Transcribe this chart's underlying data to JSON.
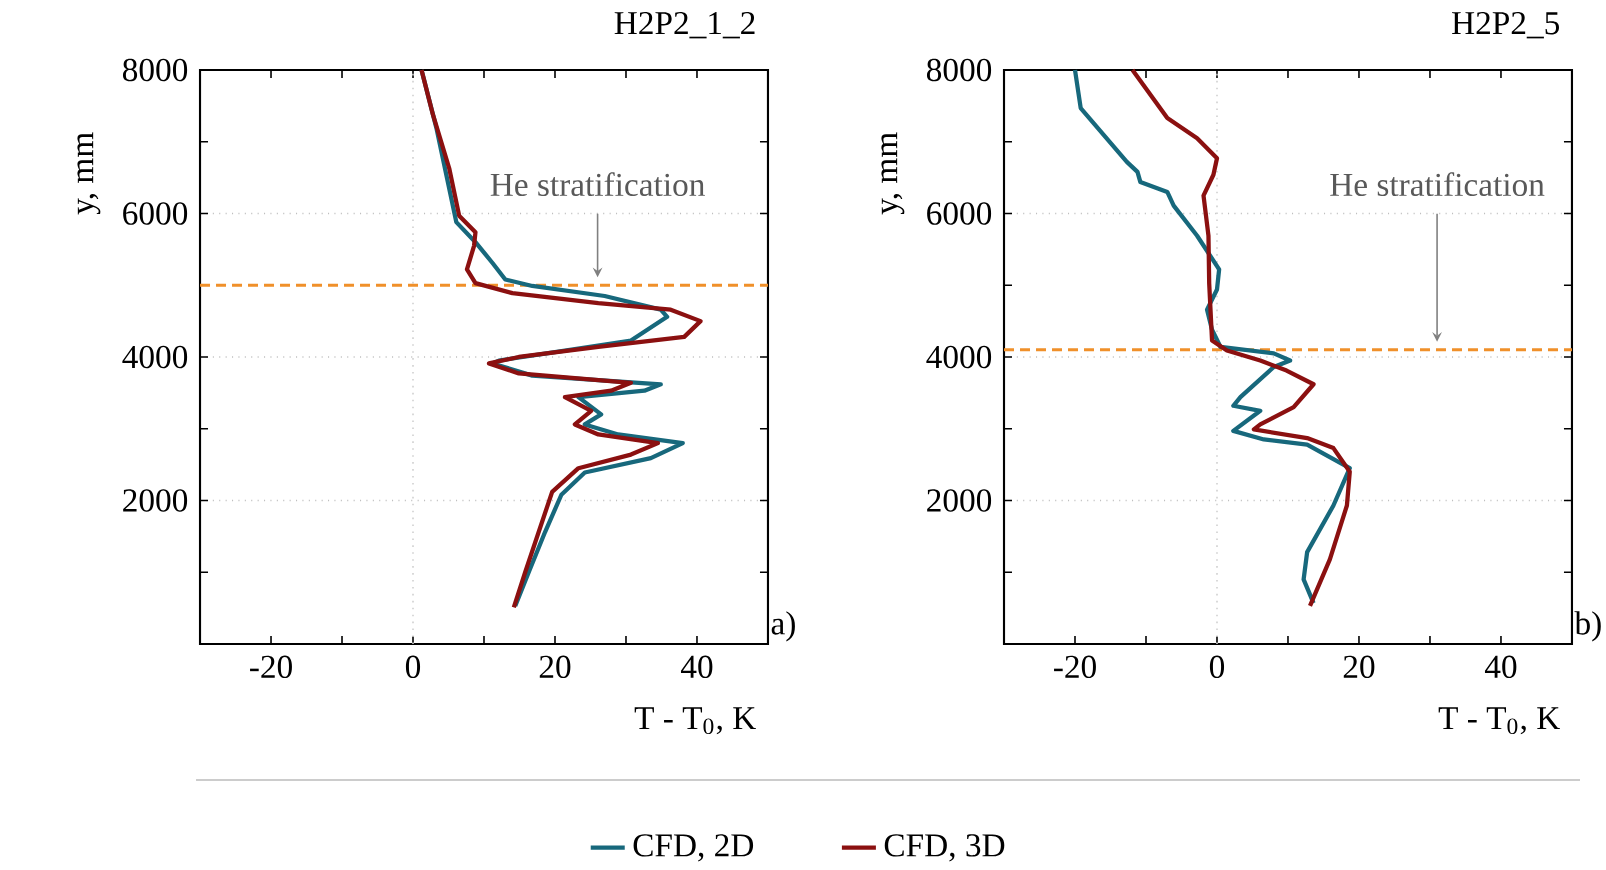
{
  "chart_data": [
    {
      "type": "line",
      "title": "H2P2_1_2",
      "xlabel": "T - T$_{0}$, K",
      "ylabel": "y, mm",
      "xlim": [
        -30,
        50
      ],
      "ylim": [
        0,
        8000
      ],
      "xticks": [
        -20,
        {
          "value": -10,
          "label": null
        },
        0,
        {
          "value": 10,
          "label": null
        },
        20,
        {
          "value": 30,
          "label": null
        },
        40
      ],
      "yticks": [
        {
          "value": 1000,
          "label": null
        },
        2000,
        {
          "value": 3000,
          "label": null
        },
        4000,
        {
          "value": 5000,
          "label": null
        },
        6000,
        {
          "value": 7000,
          "label": null
        },
        8000
      ],
      "grid": "y",
      "legend": "bottom",
      "series": [
        {
          "name": "CFD, 2D",
          "color": "#17687c",
          "x": [
            1.2,
            3.3,
            6.1,
            8.8,
            11.2,
            13.0,
            16.8,
            27.0,
            34.9,
            35.8,
            30.7,
            21.4,
            12.1,
            11.2,
            16.8,
            34.9,
            32.6,
            23.3,
            26.5,
            24.2,
            28.9,
            38.0,
            33.5,
            24.2,
            20.9,
            18.6,
            16.3,
            14.4
          ],
          "values": [
            8000,
            7190,
            5880,
            5600,
            5310,
            5080,
            4990,
            4850,
            4660,
            4560,
            4230,
            4090,
            3950,
            3910,
            3740,
            3620,
            3530,
            3440,
            3200,
            3060,
            2920,
            2800,
            2590,
            2390,
            2080,
            1560,
            1000,
            530
          ]
        },
        {
          "name": "CFD, 3D",
          "color": "#8b1010",
          "x": [
            1.2,
            2.8,
            5.1,
            6.5,
            8.8,
            8.6,
            7.6,
            8.8,
            14.0,
            26.1,
            36.3,
            40.5,
            38.2,
            26.1,
            14.9,
            10.7,
            14.9,
            30.7,
            27.9,
            21.4,
            25.1,
            22.8,
            26.1,
            34.5,
            30.7,
            23.3,
            19.6,
            17.7,
            15.8,
            14.2
          ],
          "values": [
            8000,
            7380,
            6630,
            5970,
            5740,
            5550,
            5220,
            5030,
            4890,
            4750,
            4660,
            4500,
            4280,
            4140,
            4000,
            3910,
            3770,
            3640,
            3530,
            3440,
            3250,
            3060,
            2920,
            2800,
            2640,
            2450,
            2120,
            1560,
            1000,
            510
          ]
        }
      ],
      "ref_lines": [
        {
          "axis": "x",
          "value": 0,
          "color": "#d0d0d0",
          "line_style": "dotted"
        },
        {
          "axis": "y",
          "value": 5000,
          "color": "#f0902a",
          "line_style": "dashed"
        }
      ],
      "annotations": [
        {
          "text": "He stratification",
          "x": 26,
          "y": 5000
        },
        "a)"
      ]
    },
    {
      "type": "line",
      "title": "H2P2_5",
      "xlabel": "T - T$_{0}$, K",
      "ylabel": "y, mm",
      "xlim": [
        -30,
        50
      ],
      "ylim": [
        0,
        8000
      ],
      "xticks": [
        -20,
        {
          "value": -10,
          "label": null
        },
        0,
        {
          "value": 10,
          "label": null
        },
        20,
        {
          "value": 30,
          "label": null
        },
        40
      ],
      "yticks": [
        {
          "value": 1000,
          "label": null
        },
        2000,
        {
          "value": 3000,
          "label": null
        },
        4000,
        {
          "value": 5000,
          "label": null
        },
        6000,
        {
          "value": 7000,
          "label": null
        },
        8000
      ],
      "grid": "y",
      "series": [
        {
          "color": "#17687c",
          "x": [
            -20.0,
            -19.2,
            -12.7,
            -11.2,
            -10.8,
            -7.0,
            -6.1,
            -2.8,
            0.3,
            0.0,
            -1.4,
            -0.7,
            0.5,
            8.0,
            10.3,
            8.0,
            3.3,
            2.3,
            6.1,
            2.3,
            6.6,
            12.7,
            18.7,
            16.4,
            12.7,
            12.2,
            13.6
          ],
          "values": [
            8000,
            7470,
            6720,
            6580,
            6440,
            6300,
            6110,
            5690,
            5220,
            4940,
            4660,
            4380,
            4140,
            4050,
            3950,
            3860,
            3440,
            3320,
            3250,
            2970,
            2850,
            2780,
            2450,
            1930,
            1280,
            900,
            570
          ]
        },
        {
          "color": "#8b1010",
          "x": [
            -11.9,
            -7.0,
            -2.8,
            0.0,
            -0.5,
            -1.9,
            -1.2,
            -1.1,
            -0.7,
            1.4,
            6.1,
            9.8,
            13.6,
            10.8,
            6.1,
            5.2,
            12.7,
            16.4,
            18.7,
            18.3,
            15.9,
            13.1
          ],
          "values": [
            8000,
            7330,
            7050,
            6770,
            6540,
            6250,
            5690,
            5030,
            4230,
            4090,
            3950,
            3810,
            3620,
            3300,
            3060,
            2990,
            2870,
            2730,
            2400,
            1930,
            1180,
            530
          ]
        }
      ],
      "ref_lines": [
        {
          "axis": "x",
          "value": 0,
          "color": "#d0d0d0",
          "line_style": "dotted"
        },
        {
          "axis": "y",
          "value": 4100,
          "color": "#f0902a",
          "line_style": "dashed"
        }
      ],
      "annotations": [
        {
          "text": "He stratification",
          "x": 31,
          "y": 4100
        },
        "b)"
      ]
    }
  ]
}
